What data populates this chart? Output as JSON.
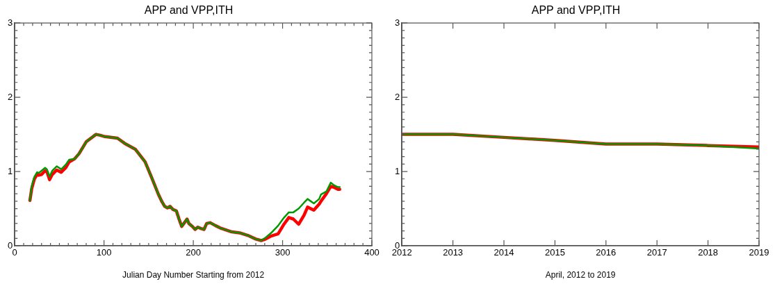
{
  "chart_data": [
    {
      "type": "line",
      "title": "APP and VPP,ITH",
      "xlabel": "Julian Day Number Starting from 2012",
      "xlim": [
        0,
        400
      ],
      "xticks": [
        0,
        {
          "value": 10,
          "label": null
        },
        {
          "value": 20,
          "label": null
        },
        {
          "value": 30,
          "label": null
        },
        {
          "value": 40,
          "label": null
        },
        {
          "value": 50,
          "label": null
        },
        {
          "value": 60,
          "label": null
        },
        {
          "value": 70,
          "label": null
        },
        {
          "value": 80,
          "label": null
        },
        {
          "value": 90,
          "label": null
        },
        100,
        {
          "value": 110,
          "label": null
        },
        {
          "value": 120,
          "label": null
        },
        {
          "value": 130,
          "label": null
        },
        {
          "value": 140,
          "label": null
        },
        {
          "value": 150,
          "label": null
        },
        {
          "value": 160,
          "label": null
        },
        {
          "value": 170,
          "label": null
        },
        {
          "value": 180,
          "label": null
        },
        {
          "value": 190,
          "label": null
        },
        200,
        {
          "value": 210,
          "label": null
        },
        {
          "value": 220,
          "label": null
        },
        {
          "value": 230,
          "label": null
        },
        {
          "value": 240,
          "label": null
        },
        {
          "value": 250,
          "label": null
        },
        {
          "value": 260,
          "label": null
        },
        {
          "value": 270,
          "label": null
        },
        {
          "value": 280,
          "label": null
        },
        {
          "value": 290,
          "label": null
        },
        300,
        {
          "value": 310,
          "label": null
        },
        {
          "value": 320,
          "label": null
        },
        {
          "value": 330,
          "label": null
        },
        {
          "value": 340,
          "label": null
        },
        {
          "value": 350,
          "label": null
        },
        {
          "value": 360,
          "label": null
        },
        {
          "value": 370,
          "label": null
        },
        {
          "value": 380,
          "label": null
        },
        {
          "value": 390,
          "label": null
        },
        400
      ],
      "ylim": [
        0,
        3
      ],
      "yticks": [
        0,
        {
          "value": 0.1,
          "label": null
        },
        {
          "value": 0.2,
          "label": null
        },
        {
          "value": 0.3,
          "label": null
        },
        {
          "value": 0.4,
          "label": null
        },
        {
          "value": 0.5,
          "label": null
        },
        {
          "value": 0.6,
          "label": null
        },
        {
          "value": 0.7,
          "label": null
        },
        {
          "value": 0.8,
          "label": null
        },
        {
          "value": 0.9,
          "label": null
        },
        1,
        {
          "value": 1.1,
          "label": null
        },
        {
          "value": 1.2,
          "label": null
        },
        {
          "value": 1.3,
          "label": null
        },
        {
          "value": 1.4,
          "label": null
        },
        {
          "value": 1.5,
          "label": null
        },
        {
          "value": 1.6,
          "label": null
        },
        {
          "value": 1.7,
          "label": null
        },
        {
          "value": 1.8,
          "label": null
        },
        {
          "value": 1.9,
          "label": null
        },
        2,
        {
          "value": 2.1,
          "label": null
        },
        {
          "value": 2.2,
          "label": null
        },
        {
          "value": 2.3,
          "label": null
        },
        {
          "value": 2.4,
          "label": null
        },
        {
          "value": 2.5,
          "label": null
        },
        {
          "value": 2.6,
          "label": null
        },
        {
          "value": 2.7,
          "label": null
        },
        {
          "value": 2.8,
          "label": null
        },
        {
          "value": 2.9,
          "label": null
        },
        3
      ],
      "grid": false,
      "legend": false,
      "marker": "none",
      "line_style": "solid",
      "x": [
        17,
        19,
        22,
        25,
        27,
        30,
        34,
        36,
        39,
        42,
        47,
        52,
        57,
        61,
        67,
        72,
        80,
        91,
        95,
        101,
        115,
        123,
        135,
        146,
        154,
        161,
        165,
        168,
        171,
        174,
        177,
        181,
        184,
        187,
        190,
        193,
        195,
        199,
        202,
        205,
        209,
        212,
        215,
        219,
        225,
        230,
        242,
        253,
        261,
        270,
        276,
        281,
        287,
        295,
        301,
        307,
        312,
        318,
        324,
        328,
        335,
        341,
        343,
        349,
        354,
        357,
        362,
        364
      ],
      "series": [
        {
          "color": "#ff0000",
          "values": [
            0.61,
            0.77,
            0.9,
            0.96,
            0.95,
            0.96,
            1.01,
            1.0,
            0.89,
            0.96,
            1.02,
            0.99,
            1.05,
            1.13,
            1.17,
            1.24,
            1.4,
            1.5,
            1.49,
            1.47,
            1.45,
            1.38,
            1.3,
            1.13,
            0.9,
            0.69,
            0.59,
            0.53,
            0.51,
            0.53,
            0.49,
            0.47,
            0.36,
            0.26,
            0.31,
            0.36,
            0.3,
            0.26,
            0.22,
            0.25,
            0.23,
            0.22,
            0.3,
            0.31,
            0.27,
            0.24,
            0.19,
            0.17,
            0.14,
            0.09,
            0.07,
            0.09,
            0.13,
            0.16,
            0.28,
            0.38,
            0.36,
            0.29,
            0.41,
            0.52,
            0.48,
            0.56,
            0.6,
            0.7,
            0.8,
            0.79,
            0.76,
            0.76
          ]
        },
        {
          "color": "#009a00",
          "values": [
            0.61,
            0.8,
            0.93,
            0.99,
            0.98,
            1.01,
            1.05,
            1.03,
            0.93,
            1.01,
            1.07,
            1.03,
            1.09,
            1.16,
            1.17,
            1.24,
            1.4,
            1.5,
            1.49,
            1.47,
            1.45,
            1.38,
            1.3,
            1.13,
            0.9,
            0.69,
            0.59,
            0.53,
            0.51,
            0.53,
            0.49,
            0.47,
            0.36,
            0.26,
            0.31,
            0.36,
            0.3,
            0.26,
            0.22,
            0.25,
            0.23,
            0.22,
            0.3,
            0.31,
            0.27,
            0.24,
            0.19,
            0.17,
            0.14,
            0.09,
            0.07,
            0.11,
            0.17,
            0.27,
            0.37,
            0.45,
            0.45,
            0.5,
            0.58,
            0.63,
            0.57,
            0.63,
            0.69,
            0.73,
            0.85,
            0.82,
            0.79,
            0.79
          ]
        }
      ]
    },
    {
      "type": "line",
      "title": "APP and VPP,ITH",
      "xlabel": "April, 2012 to 2019",
      "xlim": [
        2012,
        2019
      ],
      "xticks": [
        2012,
        2013,
        2014,
        2015,
        2016,
        2017,
        2018,
        2019
      ],
      "ylim": [
        0,
        3
      ],
      "yticks": [
        0,
        {
          "value": 0.1,
          "label": null
        },
        {
          "value": 0.2,
          "label": null
        },
        {
          "value": 0.3,
          "label": null
        },
        {
          "value": 0.4,
          "label": null
        },
        {
          "value": 0.5,
          "label": null
        },
        {
          "value": 0.6,
          "label": null
        },
        {
          "value": 0.7,
          "label": null
        },
        {
          "value": 0.8,
          "label": null
        },
        {
          "value": 0.9,
          "label": null
        },
        1,
        {
          "value": 1.1,
          "label": null
        },
        {
          "value": 1.2,
          "label": null
        },
        {
          "value": 1.3,
          "label": null
        },
        {
          "value": 1.4,
          "label": null
        },
        {
          "value": 1.5,
          "label": null
        },
        {
          "value": 1.6,
          "label": null
        },
        {
          "value": 1.7,
          "label": null
        },
        {
          "value": 1.8,
          "label": null
        },
        {
          "value": 1.9,
          "label": null
        },
        2,
        {
          "value": 2.1,
          "label": null
        },
        {
          "value": 2.2,
          "label": null
        },
        {
          "value": 2.3,
          "label": null
        },
        {
          "value": 2.4,
          "label": null
        },
        {
          "value": 2.5,
          "label": null
        },
        {
          "value": 2.6,
          "label": null
        },
        {
          "value": 2.7,
          "label": null
        },
        {
          "value": 2.8,
          "label": null
        },
        {
          "value": 2.9,
          "label": null
        },
        3
      ],
      "grid": false,
      "legend": false,
      "marker": "none",
      "line_style": "solid",
      "x": [
        2012,
        2013,
        2014,
        2015,
        2016,
        2017,
        2018,
        2019
      ],
      "series": [
        {
          "color": "#ff0000",
          "values": [
            1.5,
            1.5,
            1.46,
            1.42,
            1.37,
            1.37,
            1.35,
            1.33
          ]
        },
        {
          "color": "#009a00",
          "values": [
            1.5,
            1.5,
            1.46,
            1.42,
            1.37,
            1.37,
            1.35,
            1.31
          ]
        }
      ]
    }
  ]
}
